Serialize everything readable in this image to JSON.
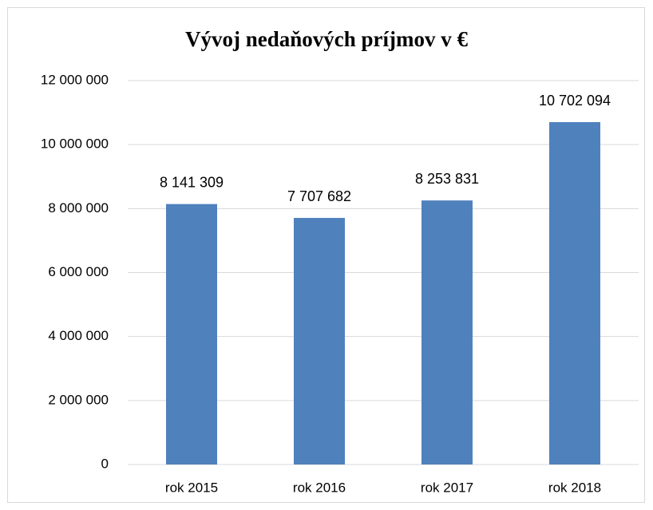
{
  "chart_data": {
    "type": "bar",
    "title": "Vývoj nedaňových príjmov v €",
    "categories": [
      "rok 2015",
      "rok 2016",
      "rok 2017",
      "rok 2018"
    ],
    "values": [
      8141309,
      7707682,
      8253831,
      10702094
    ],
    "value_labels": [
      "8 141 309",
      "7 707 682",
      "8 253 831",
      "10 702 094"
    ],
    "color": "#4f81bd",
    "ylim": [
      0,
      12000000
    ],
    "yticks": [
      0,
      {
        "value": 2000000,
        "label": "2 000 000"
      },
      {
        "value": 4000000,
        "label": "4 000 000"
      },
      {
        "value": 6000000,
        "label": "6 000 000"
      },
      {
        "value": 8000000,
        "label": "8 000 000"
      },
      {
        "value": 10000000,
        "label": "10 000 000"
      },
      {
        "value": 12000000,
        "label": "12 000 000"
      }
    ],
    "grid": true
  }
}
